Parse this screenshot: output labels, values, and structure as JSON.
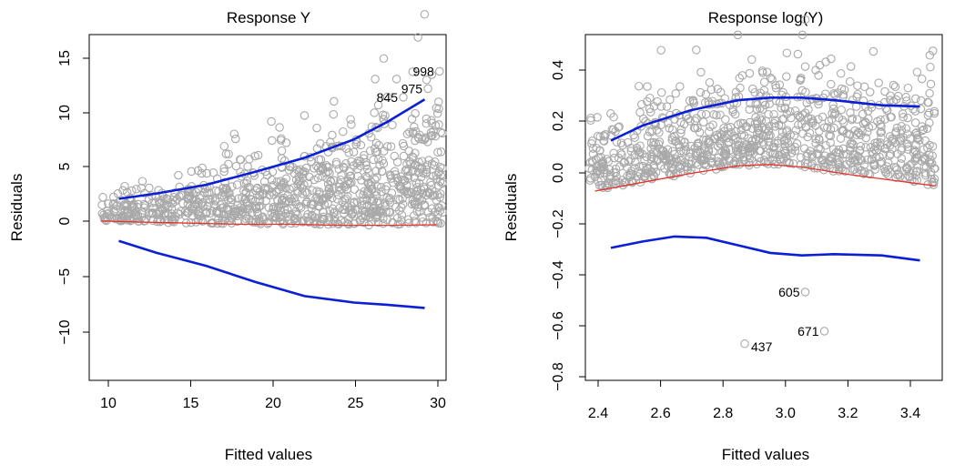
{
  "chart_data": [
    {
      "type": "scatter",
      "title": "Response Y",
      "xlabel": "Fitted values",
      "ylabel": "Residuals",
      "xlim": [
        8.9,
        30.6
      ],
      "ylim": [
        -14.5,
        17.5
      ],
      "xticks": [
        10,
        15,
        20,
        25,
        30
      ],
      "yticks": [
        -10,
        -5,
        0,
        5,
        10,
        15
      ],
      "grid": false,
      "point_count": 1000,
      "point_color": "#a9a9a9",
      "lines": [
        {
          "role": "smooth",
          "color": "#e8322a",
          "x": [
            9.6,
            12,
            15,
            18,
            21,
            24,
            27,
            30
          ],
          "y": [
            0.25,
            0.15,
            0.05,
            -0.05,
            -0.05,
            -0.15,
            -0.15,
            -0.1
          ]
        },
        {
          "role": "upper",
          "color": "#0a1fd6",
          "x": [
            10.7,
            13,
            16,
            19,
            22,
            25,
            27,
            29.3
          ],
          "y": [
            2.3,
            2.8,
            3.6,
            4.8,
            6.1,
            7.8,
            9.4,
            11.5
          ]
        },
        {
          "role": "lower",
          "color": "#0a1fd6",
          "x": [
            10.7,
            13,
            16,
            19,
            22,
            25,
            27,
            29.3
          ],
          "y": [
            -1.6,
            -2.7,
            -3.9,
            -5.4,
            -6.7,
            -7.3,
            -7.5,
            -7.8
          ]
        }
      ],
      "labeled_points": [
        {
          "label": "998",
          "x": 30.2,
          "y": 14.1
        },
        {
          "label": "975",
          "x": 29.5,
          "y": 12.5
        },
        {
          "label": "845",
          "x": 28.0,
          "y": 11.7
        }
      ]
    },
    {
      "type": "scatter",
      "title": "Response log(Y)",
      "xlabel": "Fitted values",
      "ylabel": "Residuals",
      "xlim": [
        2.37,
        3.49
      ],
      "ylim": [
        -0.82,
        0.55
      ],
      "xticks": [
        2.4,
        2.6,
        2.8,
        3.0,
        3.2,
        3.4
      ],
      "yticks": [
        -0.8,
        -0.6,
        -0.4,
        -0.2,
        0.0,
        0.2,
        0.4
      ],
      "grid": false,
      "point_count": 1000,
      "point_color": "#a9a9a9",
      "lines": [
        {
          "role": "smooth",
          "color": "#e8322a",
          "x": [
            2.4,
            2.55,
            2.7,
            2.85,
            2.95,
            3.05,
            3.2,
            3.35,
            3.47
          ],
          "y": [
            -0.07,
            -0.035,
            0.0,
            0.03,
            0.035,
            0.025,
            -0.005,
            -0.03,
            -0.05
          ]
        },
        {
          "role": "upper",
          "color": "#0a1fd6",
          "x": [
            2.45,
            2.55,
            2.7,
            2.85,
            2.95,
            3.05,
            3.15,
            3.3,
            3.42
          ],
          "y": [
            0.13,
            0.19,
            0.25,
            0.29,
            0.3,
            0.3,
            0.29,
            0.27,
            0.265
          ]
        },
        {
          "role": "lower",
          "color": "#0a1fd6",
          "x": [
            2.45,
            2.55,
            2.65,
            2.75,
            2.85,
            2.95,
            3.05,
            3.15,
            3.3,
            3.42
          ],
          "y": [
            -0.295,
            -0.27,
            -0.25,
            -0.255,
            -0.285,
            -0.315,
            -0.325,
            -0.32,
            -0.325,
            -0.345
          ]
        }
      ],
      "labeled_points": [
        {
          "label": "605",
          "x": 3.06,
          "y": -0.47
        },
        {
          "label": "671",
          "x": 3.12,
          "y": -0.625
        },
        {
          "label": "437",
          "x": 2.87,
          "y": -0.675
        }
      ]
    }
  ]
}
